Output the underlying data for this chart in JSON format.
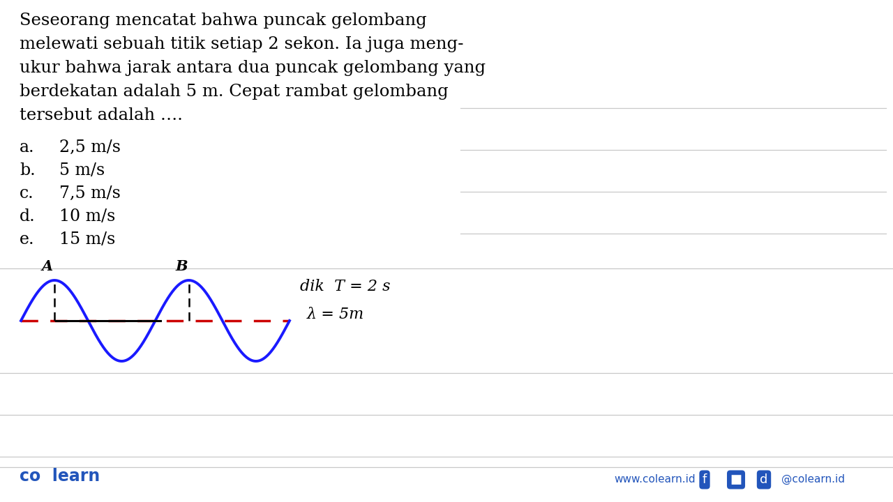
{
  "bg_color": "#ffffff",
  "text_color": "#000000",
  "blue_color": "#1a1aff",
  "red_color": "#cc0000",
  "question_lines": [
    "Seseorang mencatat bahwa puncak gelombang",
    "melewati sebuah titik setiap 2 sekon. Ia juga meng-",
    "ukur bahwa jarak antara dua puncak gelombang yang",
    "berdekatan adalah 5 m. Cepat rambat gelombang",
    "tersebut adalah …."
  ],
  "options": [
    [
      "a.",
      "2,5 m/s"
    ],
    [
      "b.",
      "5 m/s"
    ],
    [
      "c.",
      "7,5 m/s"
    ],
    [
      "d.",
      "10 m/s"
    ],
    [
      "e.",
      "15 m/s"
    ]
  ],
  "dik_text": "dik  T = 2 s",
  "lambda_text": "λ = 5m",
  "label_A": "A",
  "label_B": "B",
  "footer_left": "co  learn",
  "footer_url": "www.colearn.id",
  "footer_social": "@colearn.id",
  "divider_color": "#c8c8c8",
  "wave_color": "#1a1aff",
  "dashed_color": "#cc0000",
  "line_color": "#000000",
  "font_size_question": 17.5,
  "font_size_options": 17,
  "font_size_dik": 15,
  "font_size_footer": 16
}
